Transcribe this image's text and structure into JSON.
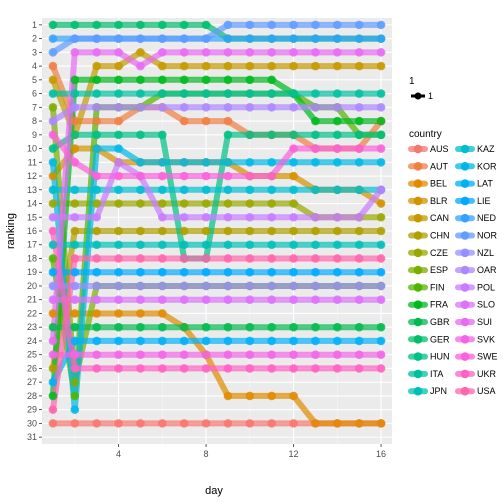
{
  "chart_data": {
    "type": "line",
    "xlabel": "day",
    "ylabel": "ranking",
    "x_ticks": [
      4,
      8,
      12,
      16
    ],
    "y_ticks": [
      1,
      2,
      3,
      4,
      5,
      6,
      7,
      8,
      9,
      10,
      11,
      12,
      13,
      14,
      15,
      16,
      17,
      18,
      19,
      20,
      21,
      22,
      23,
      24,
      25,
      26,
      27,
      28,
      29,
      30,
      31
    ],
    "xlim": [
      0.5,
      16.5
    ],
    "ylim": [
      0.5,
      31.5
    ],
    "y_reversed": true,
    "grid": true,
    "legend_position": "right",
    "size_legend": {
      "title": "1",
      "label": "1"
    },
    "legend_title": "country",
    "x": [
      1,
      2,
      3,
      4,
      5,
      6,
      7,
      8,
      9,
      10,
      11,
      12,
      13,
      14,
      15,
      16
    ],
    "series": [
      {
        "name": "AUS",
        "color": "#F8766D",
        "values": [
          30,
          30,
          30,
          30,
          30,
          30,
          30,
          30,
          30,
          30,
          30,
          30,
          30,
          30,
          30,
          30
        ]
      },
      {
        "name": "AUT",
        "color": "#EF7F45",
        "values": [
          4,
          8,
          8,
          8,
          7,
          7,
          8,
          8,
          8,
          9,
          9,
          9,
          10,
          10,
          10,
          8
        ]
      },
      {
        "name": "BEL",
        "color": "#E08B00",
        "values": [
          22,
          22,
          22,
          22,
          22,
          22,
          23,
          25,
          28,
          28,
          28,
          28,
          30,
          30,
          30,
          30
        ]
      },
      {
        "name": "BLR",
        "color": "#D39200",
        "values": [
          12,
          10,
          10,
          11,
          11,
          11,
          11,
          11,
          11,
          12,
          12,
          12,
          13,
          13,
          13,
          14
        ]
      },
      {
        "name": "CAN",
        "color": "#C49A00",
        "values": [
          5,
          9,
          4,
          4,
          3,
          4,
          4,
          4,
          4,
          4,
          4,
          4,
          4,
          4,
          4,
          4
        ]
      },
      {
        "name": "CHN",
        "color": "#B09F00",
        "values": [
          26,
          16,
          16,
          16,
          16,
          16,
          16,
          16,
          16,
          16,
          16,
          16,
          16,
          16,
          16,
          16
        ]
      },
      {
        "name": "CZE",
        "color": "#99A800",
        "values": [
          14,
          14,
          14,
          14,
          14,
          14,
          14,
          14,
          14,
          14,
          14,
          14,
          15,
          15,
          15,
          15
        ]
      },
      {
        "name": "ESP",
        "color": "#7CAE00",
        "values": [
          7,
          27,
          20,
          20,
          20,
          20,
          20,
          20,
          20,
          20,
          20,
          20,
          20,
          20,
          20,
          20
        ]
      },
      {
        "name": "FIN",
        "color": "#53B400",
        "values": [
          18,
          28,
          7,
          7,
          7,
          6,
          6,
          6,
          6,
          6,
          6,
          6,
          7,
          7,
          9,
          9
        ]
      },
      {
        "name": "FRA",
        "color": "#00B81F",
        "values": [
          28,
          5,
          5,
          5,
          5,
          5,
          5,
          5,
          5,
          5,
          5,
          6,
          8,
          8,
          8,
          8
        ]
      },
      {
        "name": "GBR",
        "color": "#00BB4E",
        "values": [
          23,
          23,
          23,
          23,
          23,
          23,
          23,
          23,
          23,
          23,
          23,
          23,
          23,
          23,
          23,
          23
        ]
      },
      {
        "name": "GER",
        "color": "#00BE6C",
        "values": [
          1,
          1,
          1,
          1,
          1,
          1,
          1,
          1,
          2,
          2,
          2,
          2,
          2,
          2,
          2,
          2
        ]
      },
      {
        "name": "HUN",
        "color": "#00C086",
        "values": [
          10,
          9,
          9,
          9,
          9,
          9,
          18,
          18,
          9,
          9,
          9,
          9,
          9,
          9,
          9,
          9
        ]
      },
      {
        "name": "ITA",
        "color": "#00C19F",
        "values": [
          6,
          6,
          6,
          6,
          6,
          6,
          6,
          6,
          6,
          6,
          6,
          6,
          6,
          6,
          6,
          6
        ]
      },
      {
        "name": "JPN",
        "color": "#00C0B6",
        "values": [
          17,
          17,
          17,
          17,
          17,
          17,
          17,
          17,
          17,
          17,
          17,
          17,
          17,
          17,
          17,
          17
        ]
      },
      {
        "name": "KAZ",
        "color": "#00BDD0",
        "values": [
          13,
          13,
          13,
          13,
          13,
          13,
          13,
          13,
          13,
          13,
          13,
          13,
          13,
          13,
          13,
          13
        ]
      },
      {
        "name": "KOR",
        "color": "#00B8E7",
        "values": [
          11,
          29,
          10,
          10,
          11,
          11,
          11,
          11,
          11,
          11,
          11,
          11,
          11,
          11,
          11,
          11
        ]
      },
      {
        "name": "LAT",
        "color": "#00B0F6",
        "values": [
          27,
          24,
          24,
          24,
          24,
          24,
          24,
          24,
          24,
          24,
          24,
          24,
          24,
          24,
          24,
          24
        ]
      },
      {
        "name": "LIE",
        "color": "#00A9FF",
        "values": [
          19,
          19,
          19,
          19,
          19,
          19,
          19,
          19,
          19,
          19,
          19,
          19,
          19,
          19,
          19,
          19
        ]
      },
      {
        "name": "NED",
        "color": "#35A2FF",
        "values": [
          2,
          2,
          2,
          2,
          2,
          2,
          2,
          2,
          2,
          2,
          2,
          2,
          2,
          2,
          2,
          2
        ]
      },
      {
        "name": "NOR",
        "color": "#619CFF",
        "values": [
          3,
          2,
          2,
          2,
          2,
          2,
          2,
          2,
          1,
          1,
          1,
          1,
          1,
          1,
          1,
          1
        ]
      },
      {
        "name": "NZL",
        "color": "#9590FF",
        "values": [
          20,
          20,
          20,
          20,
          20,
          20,
          20,
          20,
          20,
          20,
          20,
          20,
          20,
          20,
          20,
          20
        ]
      },
      {
        "name": "OAR",
        "color": "#AC88FF",
        "values": [
          8,
          7,
          7,
          7,
          7,
          7,
          7,
          7,
          7,
          7,
          7,
          7,
          7,
          7,
          7,
          7
        ]
      },
      {
        "name": "POL",
        "color": "#C77CFF",
        "values": [
          15,
          15,
          15,
          11,
          12,
          15,
          15,
          15,
          15,
          15,
          15,
          15,
          15,
          15,
          15,
          13
        ]
      },
      {
        "name": "SLO",
        "color": "#DC71FA",
        "values": [
          21,
          21,
          21,
          21,
          21,
          21,
          21,
          21,
          21,
          21,
          21,
          21,
          21,
          21,
          21,
          21
        ]
      },
      {
        "name": "SUI",
        "color": "#E76BF3",
        "values": [
          24,
          3,
          3,
          3,
          4,
          3,
          3,
          3,
          3,
          3,
          3,
          3,
          3,
          3,
          3,
          3
        ]
      },
      {
        "name": "SVK",
        "color": "#F265E7",
        "values": [
          25,
          25,
          25,
          25,
          25,
          25,
          25,
          25,
          25,
          25,
          25,
          25,
          25,
          25,
          25,
          25
        ]
      },
      {
        "name": "SWE",
        "color": "#FA62DB",
        "values": [
          9,
          11,
          12,
          12,
          12,
          12,
          12,
          12,
          12,
          12,
          12,
          10,
          10,
          10,
          10,
          10
        ]
      },
      {
        "name": "UKR",
        "color": "#FF61C3",
        "values": [
          16,
          26,
          26,
          26,
          26,
          26,
          26,
          26,
          26,
          26,
          26,
          26,
          26,
          26,
          26,
          26
        ]
      },
      {
        "name": "USA",
        "color": "#FF65AC",
        "values": [
          29,
          18,
          18,
          18,
          18,
          18,
          18,
          18,
          18,
          18,
          18,
          18,
          18,
          18,
          18,
          18
        ]
      }
    ]
  }
}
